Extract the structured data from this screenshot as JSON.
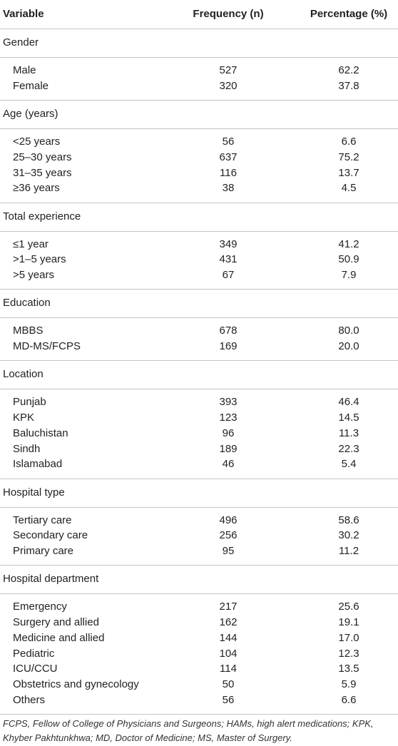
{
  "table": {
    "columns": [
      "Variable",
      "Frequency (n)",
      "Percentage (%)"
    ],
    "groups": [
      {
        "label": "Gender",
        "rows": [
          [
            "Male",
            "527",
            "62.2"
          ],
          [
            "Female",
            "320",
            "37.8"
          ]
        ]
      },
      {
        "label": "Age (years)",
        "rows": [
          [
            "<25 years",
            "56",
            "6.6"
          ],
          [
            "25–30 years",
            "637",
            "75.2"
          ],
          [
            "31–35 years",
            "116",
            "13.7"
          ],
          [
            "≥36 years",
            "38",
            "4.5"
          ]
        ]
      },
      {
        "label": "Total experience",
        "rows": [
          [
            "≤1 year",
            "349",
            "41.2"
          ],
          [
            ">1–5 years",
            "431",
            "50.9"
          ],
          [
            ">5 years",
            "67",
            "7.9"
          ]
        ]
      },
      {
        "label": "Education",
        "rows": [
          [
            "MBBS",
            "678",
            "80.0"
          ],
          [
            "MD-MS/FCPS",
            "169",
            "20.0"
          ]
        ]
      },
      {
        "label": "Location",
        "rows": [
          [
            "Punjab",
            "393",
            "46.4"
          ],
          [
            "KPK",
            "123",
            "14.5"
          ],
          [
            "Baluchistan",
            "96",
            "11.3"
          ],
          [
            "Sindh",
            "189",
            "22.3"
          ],
          [
            "Islamabad",
            "46",
            "5.4"
          ]
        ]
      },
      {
        "label": "Hospital type",
        "rows": [
          [
            "Tertiary care",
            "496",
            "58.6"
          ],
          [
            "Secondary care",
            "256",
            "30.2"
          ],
          [
            "Primary care",
            "95",
            "11.2"
          ]
        ]
      },
      {
        "label": "Hospital department",
        "rows": [
          [
            "Emergency",
            "217",
            "25.6"
          ],
          [
            "Surgery and allied",
            "162",
            "19.1"
          ],
          [
            "Medicine and allied",
            "144",
            "17.0"
          ],
          [
            "Pediatric",
            "104",
            "12.3"
          ],
          [
            "ICU/CCU",
            "114",
            "13.5"
          ],
          [
            "Obstetrics and gynecology",
            "50",
            "5.9"
          ],
          [
            "Others",
            "56",
            "6.6"
          ]
        ]
      }
    ]
  },
  "footnote": "FCPS, Fellow of College of Physicians and Surgeons; HAMs, high alert medications; KPK, Khyber Pakhtunkhwa; MD, Doctor of Medicine; MS, Master of Surgery."
}
